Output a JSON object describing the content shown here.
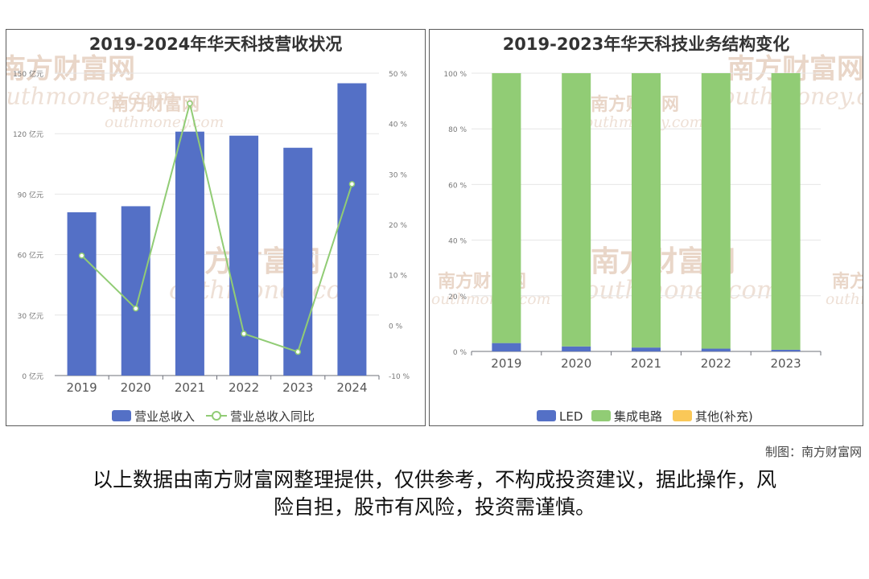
{
  "left_chart": {
    "title": "2019-2024年华天科技营收状况"
  },
  "right_chart": {
    "title": "2019-2023年华天科技业务结构变化"
  },
  "footer": {
    "maker": "制图：南方财富网",
    "disclaimer_line1": "以上数据由南方财富网整理提供，仅供参考，不构成投资建议，据此操作，风",
    "disclaimer_line2": "险自担，股市有风险，投资需谨慎。"
  },
  "watermark": {
    "text_cn": "南方财富网",
    "text_en": "outhmoney.com"
  },
  "chart_data": [
    {
      "type": "bar",
      "title": "2019-2024年华天科技营收状况",
      "categories": [
        "2019",
        "2020",
        "2021",
        "2022",
        "2023",
        "2024"
      ],
      "y_ticks": [
        "0 亿元",
        "30 亿元",
        "60 亿元",
        "90 亿元",
        "120 亿元",
        "150 亿元"
      ],
      "y2_ticks": [
        "-10 %",
        "0 %",
        "10 %",
        "20 %",
        "30 %",
        "40 %",
        "50 %"
      ],
      "ylim": [
        0,
        150
      ],
      "y2lim": [
        -10,
        50
      ],
      "series": [
        {
          "name": "营业总收入",
          "type": "bar",
          "axis": "left",
          "color": "#5470c6",
          "values": [
            81,
            84,
            121,
            119,
            113,
            145
          ]
        },
        {
          "name": "营业总收入同比",
          "type": "line",
          "axis": "right",
          "color": "#91cc75",
          "values": [
            13.8,
            3.3,
            44.0,
            -1.7,
            -5.3,
            28.0
          ]
        }
      ],
      "legend": "bottom",
      "grid": true
    },
    {
      "type": "bar",
      "stacked": true,
      "title": "2019-2023年华天科技业务结构变化",
      "categories": [
        "2019",
        "2020",
        "2021",
        "2022",
        "2023"
      ],
      "y_ticks": [
        "0 %",
        "20 %",
        "40 %",
        "60 %",
        "80 %",
        "100 %"
      ],
      "ylim": [
        0,
        100
      ],
      "series": [
        {
          "name": "LED",
          "color": "#5470c6",
          "values": [
            3.0,
            1.8,
            1.4,
            1.0,
            0.6
          ]
        },
        {
          "name": "集成电路",
          "color": "#91cc75",
          "values": [
            97.0,
            98.2,
            98.6,
            99.0,
            99.4
          ]
        },
        {
          "name": "其他(补充)",
          "color": "#fac858",
          "values": [
            0,
            0,
            0,
            0,
            0
          ]
        }
      ],
      "legend": "bottom",
      "grid": true
    }
  ]
}
